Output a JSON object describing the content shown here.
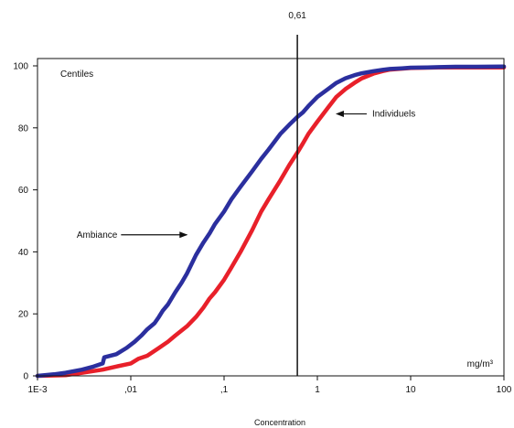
{
  "chart_data": {
    "type": "line",
    "xscale": "log",
    "xlim": [
      0.001,
      100
    ],
    "ylim": [
      0,
      100
    ],
    "xlabel": "Concentration",
    "ylabel": "",
    "grid": false,
    "x_ticks": [
      {
        "value": 0.001,
        "label": "1E-3"
      },
      {
        "value": 0.01,
        "label": ",01"
      },
      {
        "value": 0.1,
        "label": ",1"
      },
      {
        "value": 1,
        "label": "1"
      },
      {
        "value": 10,
        "label": "10"
      },
      {
        "value": 100,
        "label": "100"
      }
    ],
    "y_ticks": [
      {
        "value": 0,
        "label": "0"
      },
      {
        "value": 20,
        "label": "20"
      },
      {
        "value": 40,
        "label": "40"
      },
      {
        "value": 60,
        "label": "60"
      },
      {
        "value": 80,
        "label": "80"
      },
      {
        "value": 100,
        "label": "100"
      }
    ],
    "y_annotation": "Centiles",
    "unit_label": "mg/m³",
    "vline": {
      "x": 0.61,
      "label": "0,61"
    },
    "series": [
      {
        "name": "Ambiance",
        "color": "#2b2f9e",
        "label_at": {
          "x": 0.05,
          "y": 45
        },
        "x": [
          0.001,
          0.0015,
          0.002,
          0.003,
          0.004,
          0.005,
          0.0052,
          0.007,
          0.009,
          0.011,
          0.013,
          0.015,
          0.018,
          0.02,
          0.022,
          0.025,
          0.03,
          0.035,
          0.04,
          0.05,
          0.06,
          0.07,
          0.08,
          0.1,
          0.12,
          0.15,
          0.2,
          0.25,
          0.3,
          0.4,
          0.5,
          0.61,
          0.7,
          0.8,
          1,
          1.3,
          1.6,
          2,
          2.5,
          3,
          4,
          5,
          6,
          8,
          10,
          15,
          20,
          30,
          50,
          100
        ],
        "y": [
          0,
          0.5,
          1,
          2,
          3,
          4,
          6,
          7,
          9,
          11,
          13,
          15,
          17,
          19,
          21,
          23,
          27,
          30,
          33,
          39,
          43,
          46,
          49,
          53,
          57,
          61,
          66,
          70,
          73,
          78,
          81,
          83.5,
          85,
          87,
          90,
          92.5,
          94.5,
          96,
          97,
          97.6,
          98.3,
          98.7,
          99,
          99.2,
          99.4,
          99.5,
          99.6,
          99.7,
          99.7,
          99.8
        ]
      },
      {
        "name": "Individuels",
        "color": "#e8202a",
        "label_at": {
          "x": 1.5,
          "y": 84
        },
        "x": [
          0.001,
          0.002,
          0.003,
          0.005,
          0.007,
          0.01,
          0.012,
          0.015,
          0.02,
          0.025,
          0.03,
          0.04,
          0.05,
          0.06,
          0.07,
          0.08,
          0.1,
          0.12,
          0.15,
          0.2,
          0.25,
          0.3,
          0.4,
          0.5,
          0.61,
          0.7,
          0.8,
          1,
          1.3,
          1.6,
          2,
          2.5,
          3,
          4,
          5,
          6,
          8,
          10,
          15,
          20,
          30,
          50,
          100
        ],
        "y": [
          0,
          0.2,
          1,
          2,
          3,
          4,
          5.5,
          6.5,
          9,
          11,
          13,
          16,
          19,
          22,
          25,
          27,
          31,
          35,
          40,
          47,
          53,
          57,
          63,
          68,
          72,
          75,
          78,
          82,
          86.5,
          90,
          92.5,
          94.5,
          96,
          97.5,
          98.3,
          98.8,
          99.1,
          99.3,
          99.4,
          99.5,
          99.5,
          99.5,
          99.5
        ]
      }
    ]
  }
}
